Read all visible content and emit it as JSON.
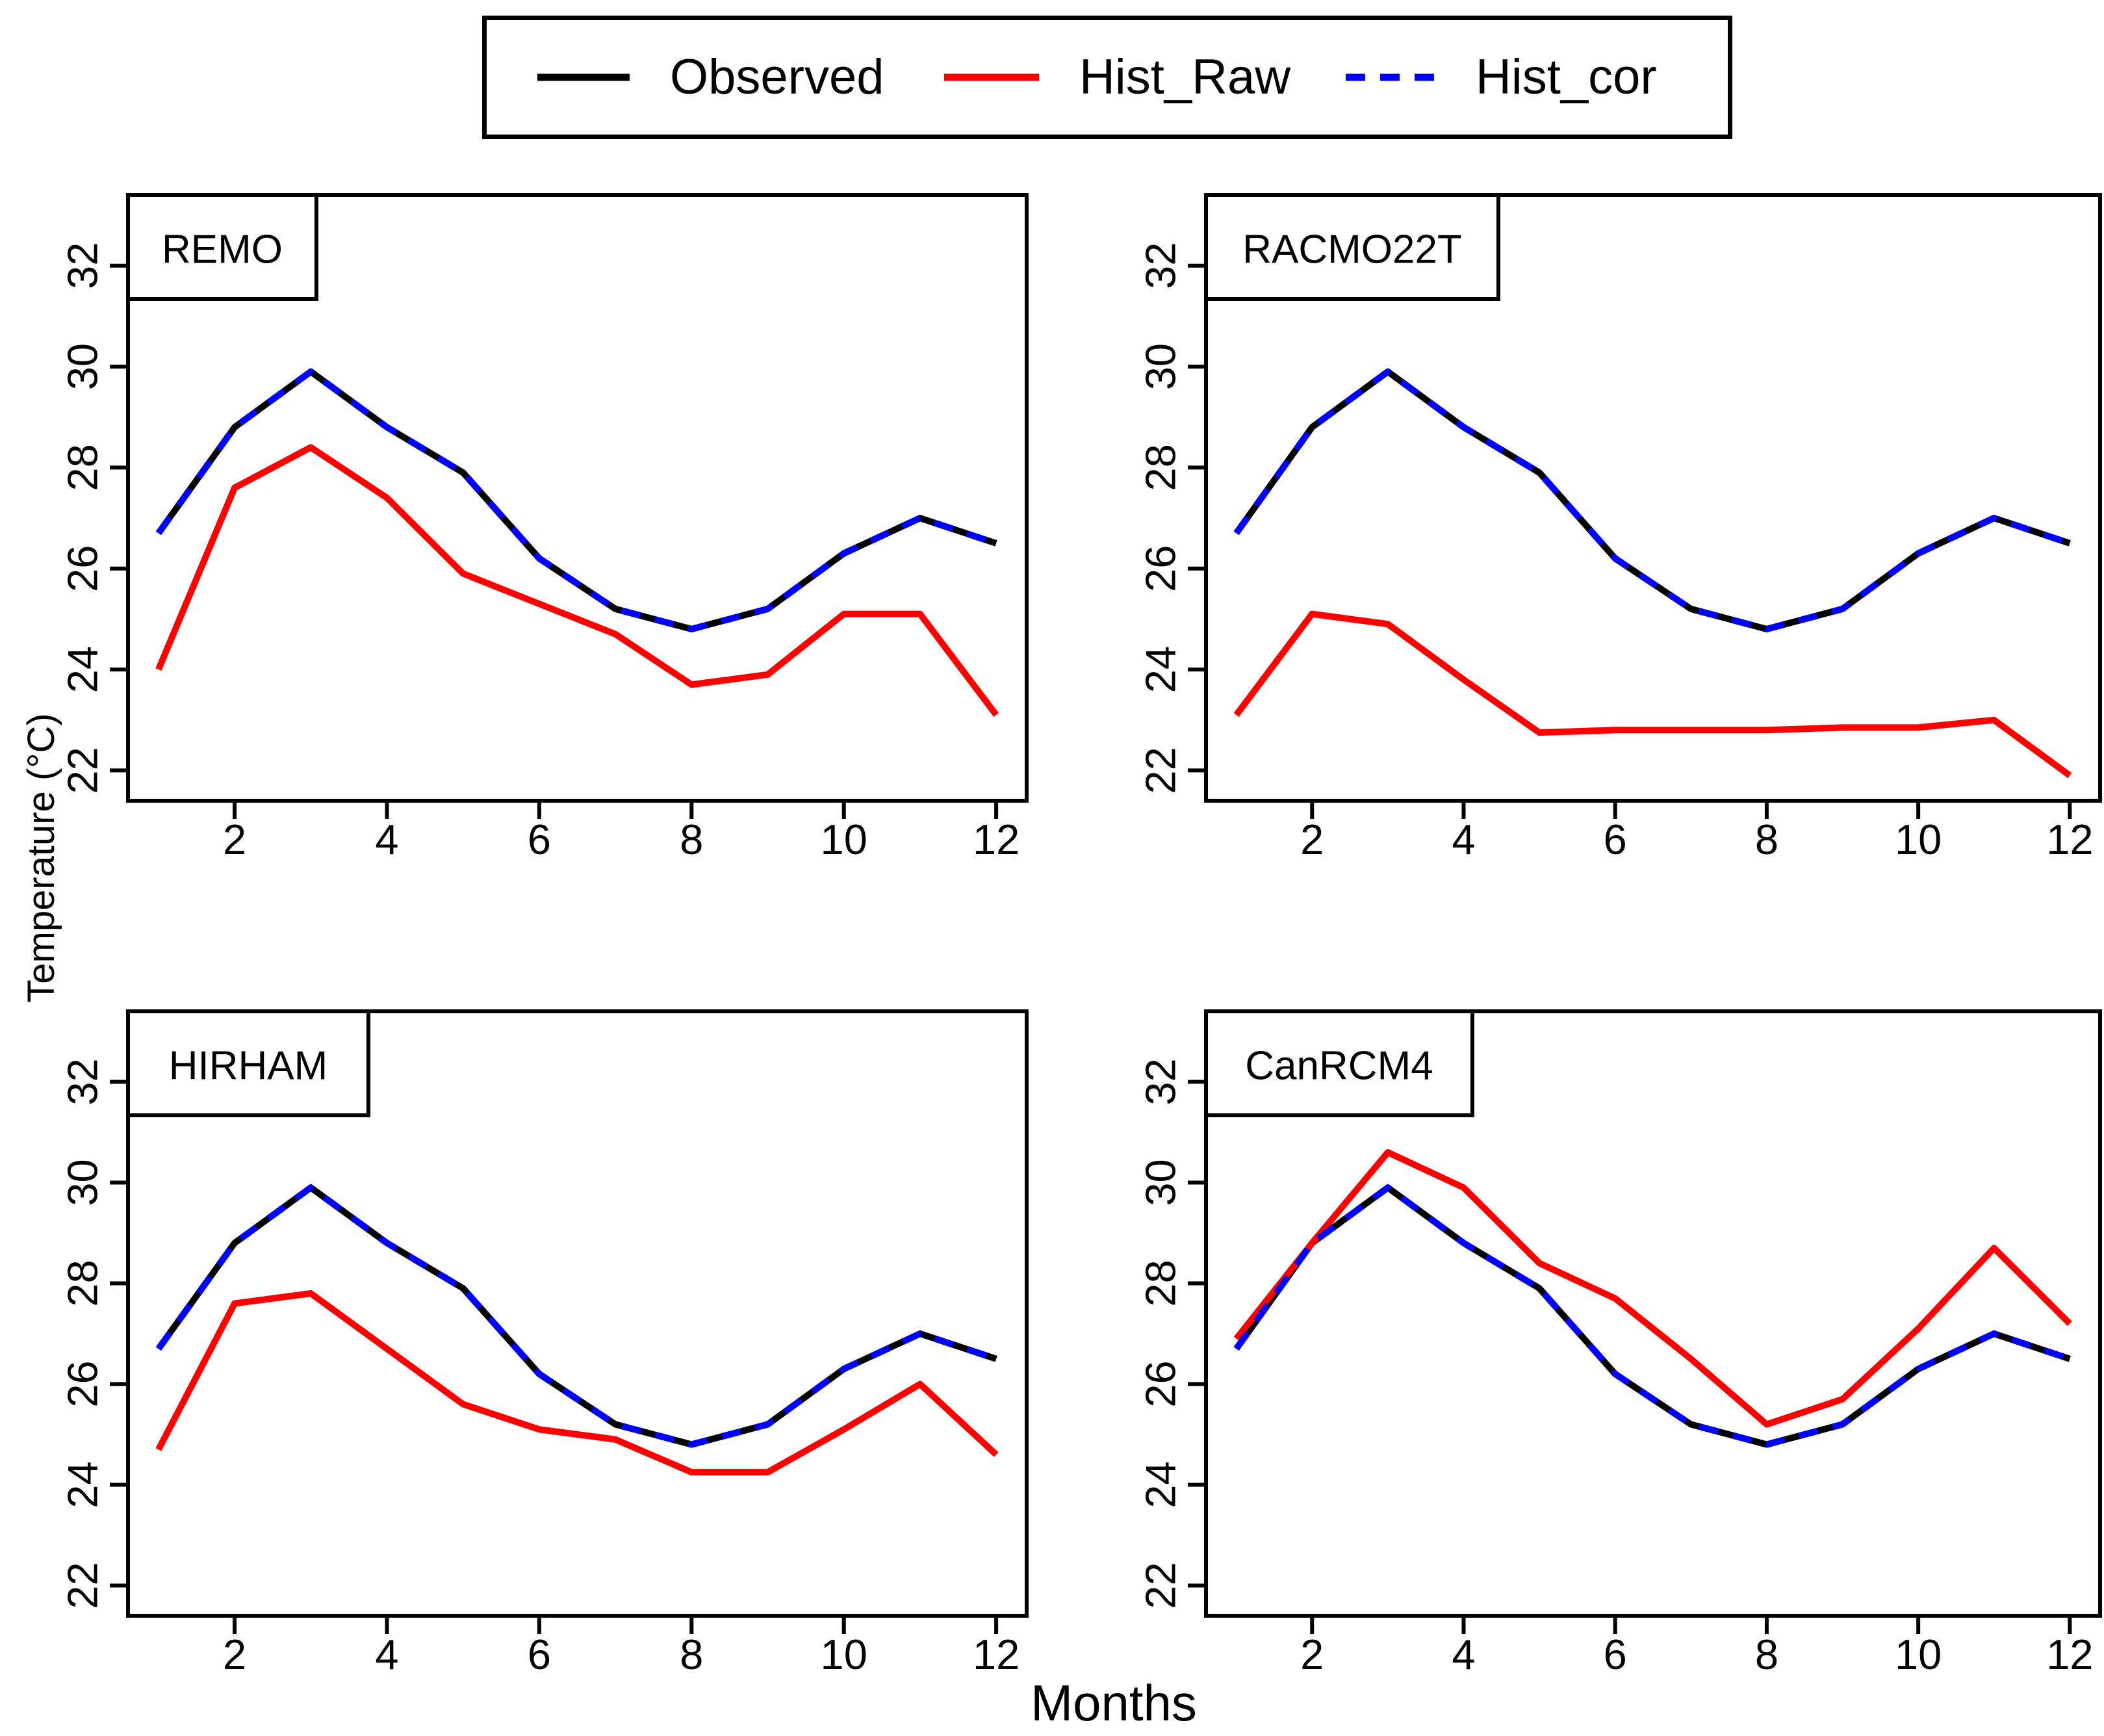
{
  "legend": {
    "items": [
      {
        "label": "Observed",
        "color": "#000000",
        "style": "solid"
      },
      {
        "label": "Hist_Raw",
        "color": "#ff0000",
        "style": "solid"
      },
      {
        "label": "Hist_cor",
        "color": "#0000ff",
        "style": "dashed"
      }
    ]
  },
  "axes": {
    "xlabel": "Months",
    "ylabel": "Temperature (°C)",
    "x_ticks": [
      2,
      4,
      6,
      8,
      10,
      12
    ],
    "y_ticks": [
      22,
      24,
      26,
      28,
      30,
      32
    ],
    "xlim": [
      0.6,
      12.4
    ],
    "ylim": [
      21.4,
      33.4
    ],
    "grid": false
  },
  "chart_data": [
    {
      "type": "line",
      "title": "REMO",
      "xlabel": "Months",
      "ylabel": "Temperature (°C)",
      "x": [
        1,
        2,
        3,
        4,
        5,
        6,
        7,
        8,
        9,
        10,
        11,
        12
      ],
      "series": [
        {
          "name": "Observed",
          "color": "#000000",
          "style": "solid",
          "values": [
            26.7,
            28.8,
            29.9,
            28.8,
            27.9,
            26.2,
            25.2,
            24.8,
            25.2,
            26.3,
            27.0,
            26.5
          ]
        },
        {
          "name": "Hist_Raw",
          "color": "#ff0000",
          "style": "solid",
          "values": [
            24.0,
            27.6,
            28.4,
            27.4,
            25.9,
            25.3,
            24.7,
            23.7,
            23.9,
            25.1,
            25.1,
            23.1
          ]
        },
        {
          "name": "Hist_cor",
          "color": "#0000ff",
          "style": "dashed",
          "values": [
            26.7,
            28.8,
            29.9,
            28.8,
            27.9,
            26.2,
            25.2,
            24.8,
            25.2,
            26.3,
            27.0,
            26.5
          ]
        }
      ]
    },
    {
      "type": "line",
      "title": "RACMO22T",
      "xlabel": "Months",
      "ylabel": "Temperature (°C)",
      "x": [
        1,
        2,
        3,
        4,
        5,
        6,
        7,
        8,
        9,
        10,
        11,
        12
      ],
      "series": [
        {
          "name": "Observed",
          "color": "#000000",
          "style": "solid",
          "values": [
            26.7,
            28.8,
            29.9,
            28.8,
            27.9,
            26.2,
            25.2,
            24.8,
            25.2,
            26.3,
            27.0,
            26.5
          ]
        },
        {
          "name": "Hist_Raw",
          "color": "#ff0000",
          "style": "solid",
          "values": [
            23.1,
            25.1,
            24.9,
            23.8,
            22.75,
            22.8,
            22.8,
            22.8,
            22.85,
            22.85,
            23.0,
            21.9
          ]
        },
        {
          "name": "Hist_cor",
          "color": "#0000ff",
          "style": "dashed",
          "values": [
            26.7,
            28.8,
            29.9,
            28.8,
            27.9,
            26.2,
            25.2,
            24.8,
            25.2,
            26.3,
            27.0,
            26.5
          ]
        }
      ]
    },
    {
      "type": "line",
      "title": "HIRHAM",
      "xlabel": "Months",
      "ylabel": "Temperature (°C)",
      "x": [
        1,
        2,
        3,
        4,
        5,
        6,
        7,
        8,
        9,
        10,
        11,
        12
      ],
      "series": [
        {
          "name": "Observed",
          "color": "#000000",
          "style": "solid",
          "values": [
            26.7,
            28.8,
            29.9,
            28.8,
            27.9,
            26.2,
            25.2,
            24.8,
            25.2,
            26.3,
            27.0,
            26.5
          ]
        },
        {
          "name": "Hist_Raw",
          "color": "#ff0000",
          "style": "solid",
          "values": [
            24.7,
            27.6,
            27.8,
            26.7,
            25.6,
            25.1,
            24.9,
            24.25,
            24.25,
            25.1,
            26.0,
            24.6
          ]
        },
        {
          "name": "Hist_cor",
          "color": "#0000ff",
          "style": "dashed",
          "values": [
            26.7,
            28.8,
            29.9,
            28.8,
            27.9,
            26.2,
            25.2,
            24.8,
            25.2,
            26.3,
            27.0,
            26.5
          ]
        }
      ]
    },
    {
      "type": "line",
      "title": "CanRCM4",
      "xlabel": "Months",
      "ylabel": "Temperature (°C)",
      "x": [
        1,
        2,
        3,
        4,
        5,
        6,
        7,
        8,
        9,
        10,
        11,
        12
      ],
      "series": [
        {
          "name": "Observed",
          "color": "#000000",
          "style": "solid",
          "values": [
            26.7,
            28.8,
            29.9,
            28.8,
            27.9,
            26.2,
            25.2,
            24.8,
            25.2,
            26.3,
            27.0,
            26.5
          ]
        },
        {
          "name": "Hist_Raw",
          "color": "#ff0000",
          "style": "solid",
          "values": [
            26.9,
            28.8,
            30.6,
            29.9,
            28.4,
            27.7,
            26.5,
            25.2,
            25.7,
            27.1,
            28.7,
            27.2
          ]
        },
        {
          "name": "Hist_cor",
          "color": "#0000ff",
          "style": "dashed",
          "values": [
            26.7,
            28.8,
            29.9,
            28.8,
            27.9,
            26.2,
            25.2,
            24.8,
            25.2,
            26.3,
            27.0,
            26.5
          ]
        }
      ]
    }
  ]
}
